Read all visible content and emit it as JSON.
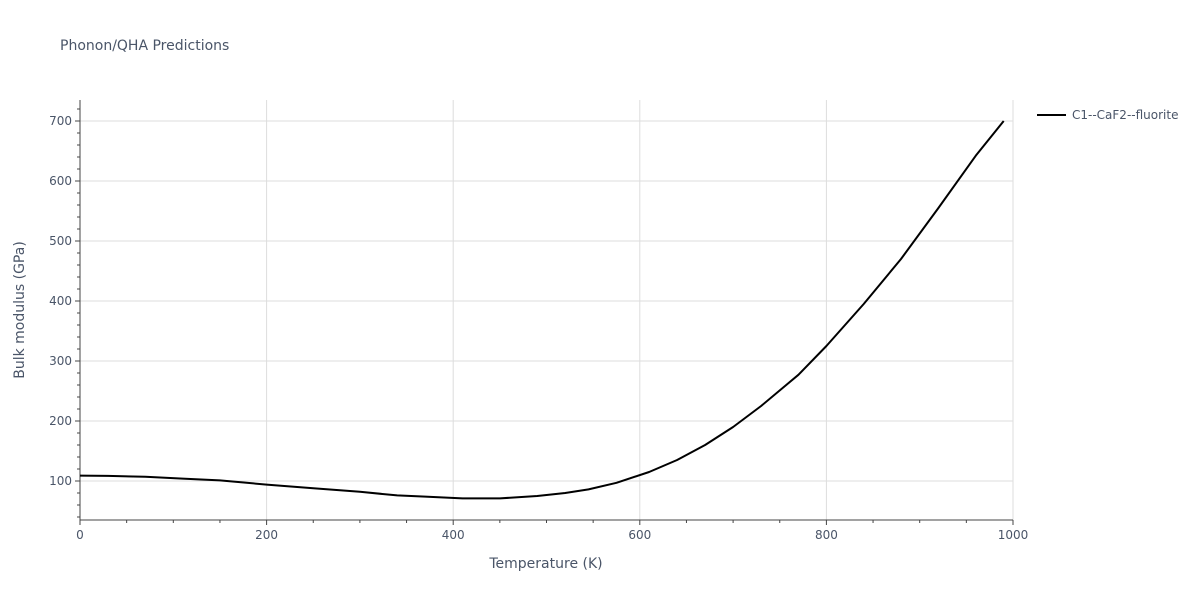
{
  "chart_data": {
    "type": "line",
    "title": "Phonon/QHA Predictions",
    "xlabel": "Temperature (K)",
    "ylabel": "Bulk modulus (GPa)",
    "xlim": [
      0,
      1000
    ],
    "ylim": [
      35,
      735
    ],
    "x_ticks": [
      0,
      200,
      400,
      600,
      800,
      1000
    ],
    "y_ticks": [
      100,
      200,
      300,
      400,
      500,
      600,
      700
    ],
    "x_tick_labels": [
      "0",
      "200",
      "400",
      "600",
      "800",
      "1000"
    ],
    "y_tick_labels": [
      "100",
      "200",
      "300",
      "400",
      "500",
      "600",
      "700"
    ],
    "grid": true,
    "legend_position": "top-right",
    "series": [
      {
        "name": "C1--CaF2--fluorite",
        "color": "#000000",
        "x": [
          0,
          30,
          70,
          110,
          150,
          200,
          250,
          300,
          340,
          370,
          410,
          450,
          490,
          520,
          545,
          575,
          610,
          640,
          670,
          700,
          730,
          770,
          800,
          840,
          880,
          920,
          960,
          990
        ],
        "y": [
          109,
          108.5,
          107,
          104,
          101,
          94,
          88,
          82,
          76,
          74,
          71,
          71,
          75,
          80,
          86,
          97,
          115,
          135,
          160,
          190,
          225,
          277,
          325,
          395,
          470,
          555,
          642,
          700
        ]
      }
    ]
  }
}
